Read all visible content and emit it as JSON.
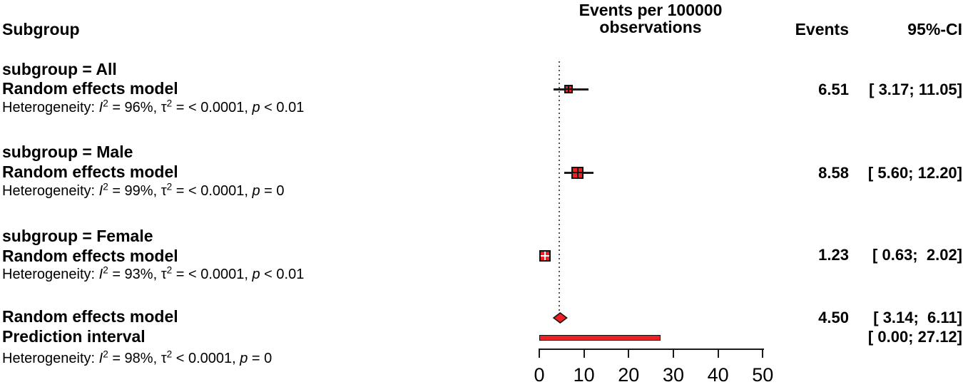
{
  "header": {
    "subgroup": "Subgroup",
    "plot_title_line1": "Events per 100000",
    "plot_title_line2": "observations",
    "events": "Events",
    "ci": "95%-CI"
  },
  "groups": [
    {
      "title": "subgroup = All",
      "model": "Random effects model",
      "het": {
        "pre": "Heterogeneity: ",
        "i": "I",
        "isup": "2",
        "seg1": " = 96%, ",
        "tau": "τ",
        "tausup": "2",
        "seg2": " = < 0.0001, ",
        "p": "p",
        "seg3": " < 0.01"
      },
      "events": "6.51",
      "ci": "[ 3.17; 11.05]"
    },
    {
      "title": "subgroup = Male",
      "model": "Random effects model",
      "het": {
        "pre": "Heterogeneity: ",
        "i": "I",
        "isup": "2",
        "seg1": " = 99%, ",
        "tau": "τ",
        "tausup": "2",
        "seg2": " = < 0.0001, ",
        "p": "p",
        "seg3": " = 0"
      },
      "events": "8.58",
      "ci": "[ 5.60; 12.20]"
    },
    {
      "title": "subgroup = Female",
      "model": "Random effects model",
      "het": {
        "pre": "Heterogeneity: ",
        "i": "I",
        "isup": "2",
        "seg1": " = 93%, ",
        "tau": "τ",
        "tausup": "2",
        "seg2": " = < 0.0001, ",
        "p": "p",
        "seg3": " < 0.01"
      },
      "events": "1.23",
      "ci": "[ 0.63;  2.02]"
    }
  ],
  "overall": {
    "model": "Random effects model",
    "prediction": "Prediction interval",
    "het": {
      "pre": "Heterogeneity: ",
      "i": "I",
      "isup": "2",
      "seg1": " = 98%, ",
      "tau": "τ",
      "tausup": "2",
      "seg2": " < 0.0001, ",
      "p": "p",
      "seg3": " = 0"
    },
    "model_events": "4.50",
    "model_ci": "[ 3.14;  6.11]",
    "prediction_ci": "[ 0.00; 27.12]"
  },
  "chart_data": {
    "type": "scatter",
    "subtype": "forest-plot",
    "title": "Events per 100000 observations",
    "xlabel": "Events per 100000 observations",
    "xlim": [
      0,
      50
    ],
    "x_ticks": [
      0,
      10,
      20,
      30,
      40,
      50
    ],
    "grid": false,
    "reference_line": 4.5,
    "marker_color": "#ED2124",
    "line_color": "#1a1a1a",
    "series": [
      {
        "name": "subgroup = All — Random effects model",
        "marker": "square",
        "estimate": 6.51,
        "ci": [
          3.17,
          11.05
        ]
      },
      {
        "name": "subgroup = Male — Random effects model",
        "marker": "square",
        "estimate": 8.58,
        "ci": [
          5.6,
          12.2
        ]
      },
      {
        "name": "subgroup = Female — Random effects model",
        "marker": "square",
        "estimate": 1.23,
        "ci": [
          0.63,
          2.02
        ]
      },
      {
        "name": "Overall — Random effects model",
        "marker": "diamond",
        "estimate": 4.5,
        "ci": [
          3.14,
          6.11
        ]
      },
      {
        "name": "Prediction interval",
        "marker": "bar",
        "ci": [
          0.0,
          27.12
        ]
      }
    ]
  }
}
